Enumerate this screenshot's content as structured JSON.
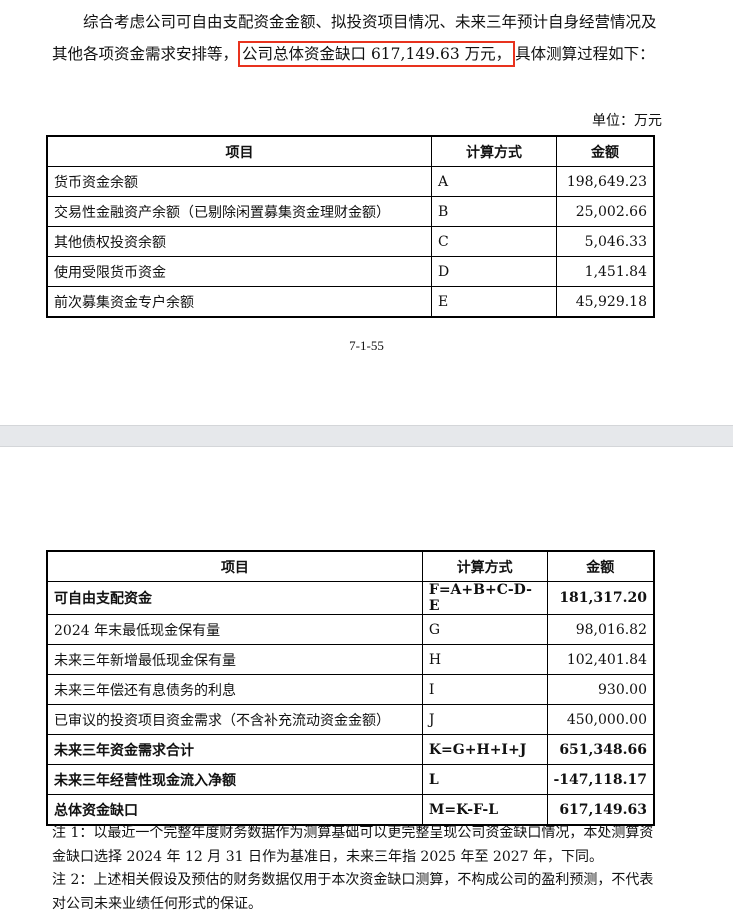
{
  "intro": {
    "text_before": "综合考虑公司可自由支配资金金额、拟投资项目情况、未来三年预计自身经营情况及其他各项资金需求安排等，",
    "highlight": "公司总体资金缺口 617,149.63 万元，",
    "text_after": "具体测算过程如下：",
    "highlight_color": "#e8321e"
  },
  "unit": "单位：万元",
  "headers": [
    "项目",
    "计算方式",
    "金额"
  ],
  "table1": [
    {
      "item": "货币资金余额",
      "method": "A",
      "amount": "198,649.23"
    },
    {
      "item": "交易性金融资产余额（已剔除闲置募集资金理财金额）",
      "method": "B",
      "amount": "25,002.66"
    },
    {
      "item": "其他债权投资余额",
      "method": "C",
      "amount": "5,046.33"
    },
    {
      "item": "使用受限货币资金",
      "method": "D",
      "amount": "1,451.84"
    },
    {
      "item": "前次募集资金专户余额",
      "method": "E",
      "amount": "45,929.18"
    }
  ],
  "page_number": "7-1-55",
  "table2": [
    {
      "item": "可自由支配资金",
      "method": "F=A+B+C-D-E",
      "amount": "181,317.20",
      "bold": true
    },
    {
      "item": "2024 年末最低现金保有量",
      "method": "G",
      "amount": "98,016.82",
      "bold": false
    },
    {
      "item": "未来三年新增最低现金保有量",
      "method": "H",
      "amount": "102,401.84",
      "bold": false
    },
    {
      "item": "未来三年偿还有息债务的利息",
      "method": "I",
      "amount": "930.00",
      "bold": false
    },
    {
      "item": "已审议的投资项目资金需求（不含补充流动资金金额）",
      "method": "J",
      "amount": "450,000.00",
      "bold": false
    },
    {
      "item": "未来三年资金需求合计",
      "method": "K=G+H+I+J",
      "amount": "651,348.66",
      "bold": true
    },
    {
      "item": "未来三年经营性现金流入净额",
      "method": "L",
      "amount": "-147,118.17",
      "bold": true
    },
    {
      "item": "总体资金缺口",
      "method": "M=K-F-L",
      "amount": "617,149.63",
      "bold": true
    }
  ],
  "notes": [
    "注 1：以最近一个完整年度财务数据作为测算基础可以更完整呈现公司资金缺口情况，本处测算资金缺口选择 2024 年 12 月 31 日作为基准日，未来三年指 2025 年至 2027 年，下同。",
    "注 2：上述相关假设及预估的财务数据仅用于本次资金缺口测算，不构成公司的盈利预测，不代表对公司未来业绩任何形式的保证。"
  ]
}
